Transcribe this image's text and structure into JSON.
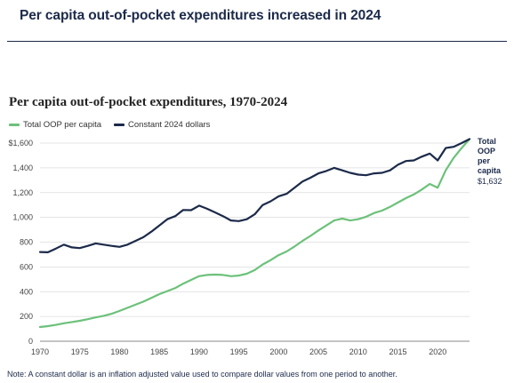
{
  "headline": "Per capita out-of-pocket expenditures increased in 2024",
  "note": "Note: A constant dollar is an inflation adjusted value used to compare dollar values from one period to another.",
  "chart_data": {
    "type": "line",
    "title": "Per capita out-of-pocket expenditures, 1970-2024",
    "xlabel": "",
    "ylabel": "",
    "xlim": [
      1970,
      2024
    ],
    "ylim": [
      0,
      1600
    ],
    "x_ticks": [
      1970,
      1975,
      1980,
      1985,
      1990,
      1995,
      2000,
      2005,
      2010,
      2015,
      2020
    ],
    "y_ticks": [
      {
        "value": 0,
        "label": "0"
      },
      {
        "value": 200,
        "label": "200"
      },
      {
        "value": 400,
        "label": "400"
      },
      {
        "value": 600,
        "label": "600"
      },
      {
        "value": 800,
        "label": "800"
      },
      {
        "value": 1000,
        "label": "1,000"
      },
      {
        "value": 1200,
        "label": "1,200"
      },
      {
        "value": 1400,
        "label": "1,400"
      },
      {
        "value": 1600,
        "label": "$1,600"
      }
    ],
    "grid": "horizontal",
    "legend_position": "top-left",
    "x": [
      1970,
      1971,
      1972,
      1973,
      1974,
      1975,
      1976,
      1977,
      1978,
      1979,
      1980,
      1981,
      1982,
      1983,
      1984,
      1985,
      1986,
      1987,
      1988,
      1989,
      1990,
      1991,
      1992,
      1993,
      1994,
      1995,
      1996,
      1997,
      1998,
      1999,
      2000,
      2001,
      2002,
      2003,
      2004,
      2005,
      2006,
      2007,
      2008,
      2009,
      2010,
      2011,
      2012,
      2013,
      2014,
      2015,
      2016,
      2017,
      2018,
      2019,
      2020,
      2021,
      2022,
      2023,
      2024
    ],
    "series": [
      {
        "name": "Total OOP per capita",
        "color": "#6cc17a",
        "values": [
          115,
          122,
          132,
          145,
          155,
          165,
          178,
          192,
          205,
          222,
          245,
          270,
          295,
          320,
          350,
          380,
          405,
          430,
          465,
          495,
          525,
          535,
          538,
          535,
          525,
          530,
          545,
          575,
          620,
          655,
          695,
          725,
          765,
          810,
          850,
          895,
          935,
          975,
          990,
          975,
          985,
          1005,
          1035,
          1055,
          1085,
          1120,
          1155,
          1185,
          1225,
          1270,
          1240,
          1380,
          1480,
          1560,
          1632
        ]
      },
      {
        "name": "Constant 2024 dollars",
        "color": "#1c2a4a",
        "values": [
          720,
          718,
          748,
          780,
          758,
          752,
          770,
          790,
          780,
          770,
          762,
          780,
          810,
          840,
          885,
          935,
          985,
          1010,
          1060,
          1058,
          1095,
          1070,
          1040,
          1010,
          975,
          970,
          985,
          1025,
          1100,
          1130,
          1170,
          1190,
          1240,
          1290,
          1320,
          1355,
          1375,
          1400,
          1380,
          1360,
          1345,
          1340,
          1355,
          1360,
          1380,
          1425,
          1455,
          1460,
          1490,
          1515,
          1460,
          1560,
          1570,
          1600,
          1632
        ]
      }
    ],
    "end_label": {
      "name": "Total OOP per capita",
      "value": "$1,632"
    }
  }
}
